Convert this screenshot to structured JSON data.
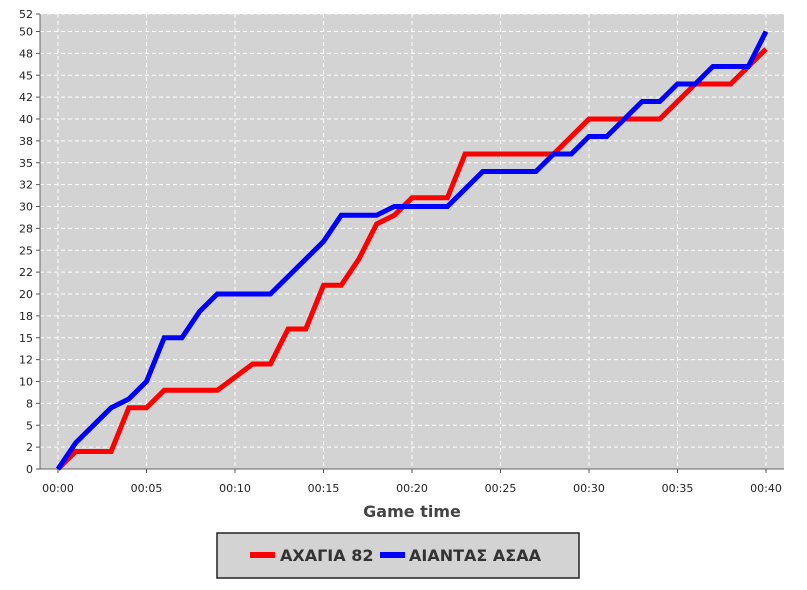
{
  "chart_data": {
    "type": "line",
    "xlabel": "Game time",
    "ylabel": "",
    "xlim": [
      0,
      40
    ],
    "ylim": [
      0,
      52
    ],
    "x_ticks": [
      0,
      5,
      10,
      15,
      20,
      25,
      30,
      35,
      40
    ],
    "x_tick_labels": [
      "00:00",
      "00:05",
      "00:10",
      "00:15",
      "00:20",
      "00:25",
      "00:30",
      "00:35",
      "00:40"
    ],
    "y_ticks": [
      0,
      2.5,
      5,
      7.5,
      10,
      12.5,
      15,
      17.5,
      20,
      22.5,
      25,
      27.5,
      30,
      32.5,
      35,
      37.5,
      40,
      42.5,
      45,
      47.5,
      50,
      52
    ],
    "y_tick_labels": [
      "0",
      "2",
      "5",
      "8",
      "10",
      "12",
      "15",
      "18",
      "20",
      "22",
      "25",
      "28",
      "30",
      "32",
      "35",
      "38",
      "40",
      "42",
      "45",
      "48",
      "50",
      "52"
    ],
    "grid": true,
    "legend_position": "bottom",
    "series": [
      {
        "name": "ΑΧΑΓΙΑ 82",
        "color": "#ff0000",
        "points": [
          [
            0,
            0
          ],
          [
            1,
            2
          ],
          [
            3,
            2
          ],
          [
            4,
            7
          ],
          [
            5,
            7
          ],
          [
            6,
            9
          ],
          [
            9,
            9
          ],
          [
            11,
            12
          ],
          [
            12,
            12
          ],
          [
            13,
            16
          ],
          [
            14,
            16
          ],
          [
            15,
            21
          ],
          [
            16,
            21
          ],
          [
            17,
            24
          ],
          [
            18,
            28
          ],
          [
            19,
            29
          ],
          [
            20,
            31
          ],
          [
            22,
            31
          ],
          [
            23,
            36
          ],
          [
            28,
            36
          ],
          [
            30,
            40
          ],
          [
            34,
            40
          ],
          [
            36,
            44
          ],
          [
            38,
            44
          ],
          [
            39,
            46
          ],
          [
            40,
            48
          ]
        ]
      },
      {
        "name": "ΑΙΑΝΤΑΣ ΑΣΑΑ",
        "color": "#0000ff",
        "points": [
          [
            0,
            0
          ],
          [
            1,
            3
          ],
          [
            3,
            7
          ],
          [
            4,
            8
          ],
          [
            5,
            10
          ],
          [
            6,
            15
          ],
          [
            7,
            15
          ],
          [
            8,
            18
          ],
          [
            9,
            20
          ],
          [
            12,
            20
          ],
          [
            13,
            22
          ],
          [
            14,
            24
          ],
          [
            15,
            26
          ],
          [
            16,
            29
          ],
          [
            18,
            29
          ],
          [
            19,
            30
          ],
          [
            22,
            30
          ],
          [
            23,
            32
          ],
          [
            24,
            34
          ],
          [
            27,
            34
          ],
          [
            28,
            36
          ],
          [
            29,
            36
          ],
          [
            30,
            38
          ],
          [
            31,
            38
          ],
          [
            32,
            40
          ],
          [
            33,
            42
          ],
          [
            34,
            42
          ],
          [
            35,
            44
          ],
          [
            36,
            44
          ],
          [
            37,
            46
          ],
          [
            39,
            46
          ],
          [
            40,
            50
          ]
        ]
      }
    ]
  }
}
